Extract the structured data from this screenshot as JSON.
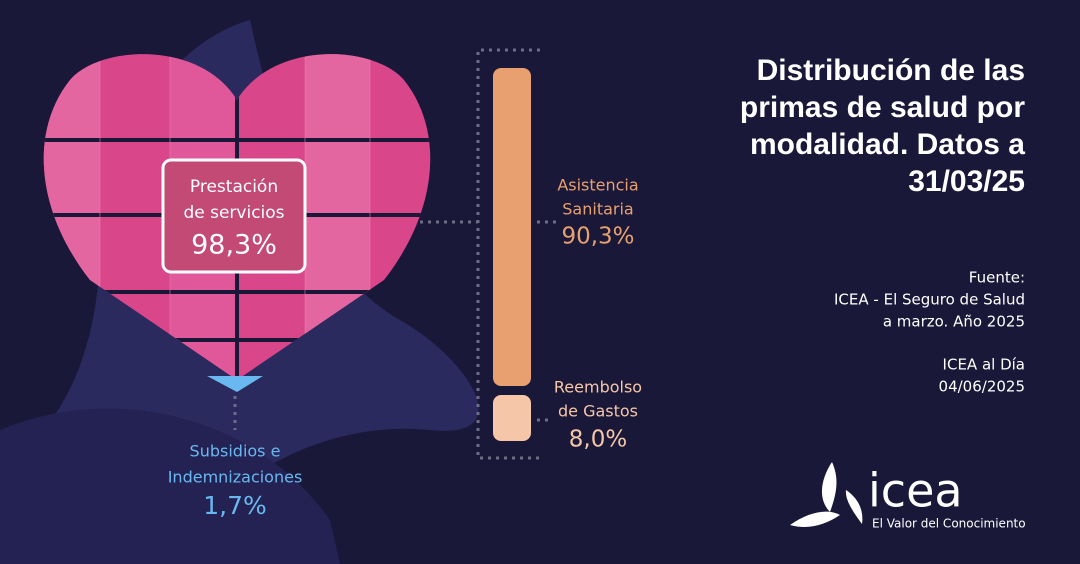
{
  "title": [
    "Distribución de las",
    "primas de salud por",
    "modalidad. Datos a",
    "31/03/25"
  ],
  "heart": {
    "label": [
      "Prestación",
      "de servicios"
    ],
    "value": "98,3%"
  },
  "bar": {
    "top": {
      "label": [
        "Asistencia",
        "Sanitaria"
      ],
      "value": "90,3%"
    },
    "bottom": {
      "label": [
        "Reembolso",
        "de Gastos"
      ],
      "value": "8,0%"
    }
  },
  "subsidies": {
    "label": [
      "Subsidios e",
      "Indemnizaciones"
    ],
    "value": "1,7%"
  },
  "source": [
    "Fuente:",
    "ICEA - El Seguro de Salud",
    "a marzo. Año 2025"
  ],
  "publication": [
    "ICEA al Día",
    "04/06/2025"
  ],
  "logo": {
    "name": "icea",
    "tagline": "El Valor del Conocimiento"
  }
}
